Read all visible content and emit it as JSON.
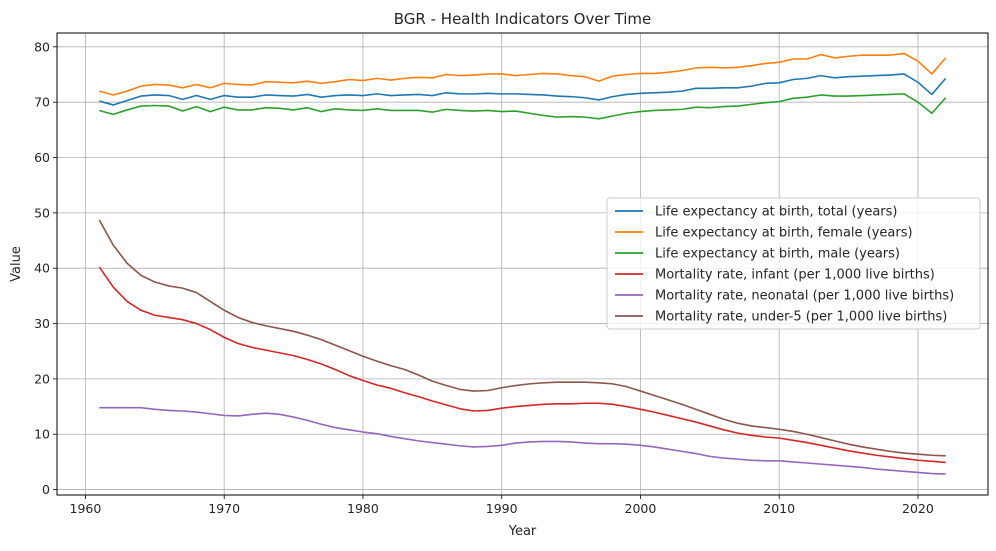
{
  "chart_data": {
    "type": "line",
    "title": "BGR - Health Indicators Over Time",
    "xlabel": "Year",
    "ylabel": "Value",
    "xlim": [
      1957.95,
      2025.05
    ],
    "ylim": [
      -0.98,
      82.5
    ],
    "xticks": [
      1960,
      1970,
      1980,
      1990,
      2000,
      2010,
      2020
    ],
    "yticks": [
      0,
      10,
      20,
      30,
      40,
      50,
      60,
      70,
      80
    ],
    "grid": true,
    "legend_position": "center-right",
    "years": [
      1961,
      1962,
      1963,
      1964,
      1965,
      1966,
      1967,
      1968,
      1969,
      1970,
      1971,
      1972,
      1973,
      1974,
      1975,
      1976,
      1977,
      1978,
      1979,
      1980,
      1981,
      1982,
      1983,
      1984,
      1985,
      1986,
      1987,
      1988,
      1989,
      1990,
      1991,
      1992,
      1993,
      1994,
      1995,
      1996,
      1997,
      1998,
      1999,
      2000,
      2001,
      2002,
      2003,
      2004,
      2005,
      2006,
      2007,
      2008,
      2009,
      2010,
      2011,
      2012,
      2013,
      2014,
      2015,
      2016,
      2017,
      2018,
      2019,
      2020,
      2021,
      2022
    ],
    "series": [
      {
        "name": "Life expectancy at birth, total (years)",
        "color": "#1f77b4",
        "values": [
          70.2,
          69.5,
          70.3,
          71.1,
          71.3,
          71.2,
          70.5,
          71.2,
          70.5,
          71.2,
          70.9,
          70.9,
          71.3,
          71.2,
          71.1,
          71.4,
          70.9,
          71.2,
          71.3,
          71.2,
          71.5,
          71.2,
          71.3,
          71.4,
          71.2,
          71.7,
          71.5,
          71.5,
          71.6,
          71.5,
          71.5,
          71.4,
          71.3,
          71.1,
          71.0,
          70.8,
          70.4,
          71.0,
          71.4,
          71.6,
          71.7,
          71.8,
          72.0,
          72.5,
          72.5,
          72.6,
          72.6,
          72.9,
          73.4,
          73.5,
          74.1,
          74.3,
          74.8,
          74.4,
          74.6,
          74.7,
          74.8,
          74.9,
          75.1,
          73.6,
          71.4,
          74.3
        ]
      },
      {
        "name": "Life expectancy at birth, female (years)",
        "color": "#ff7f0e",
        "values": [
          72.0,
          71.3,
          72.0,
          72.9,
          73.2,
          73.1,
          72.6,
          73.2,
          72.6,
          73.4,
          73.2,
          73.1,
          73.7,
          73.6,
          73.5,
          73.8,
          73.4,
          73.7,
          74.1,
          73.9,
          74.3,
          74.0,
          74.3,
          74.5,
          74.4,
          75.0,
          74.8,
          74.9,
          75.1,
          75.1,
          74.8,
          75.0,
          75.2,
          75.1,
          74.8,
          74.6,
          73.8,
          74.7,
          75.0,
          75.2,
          75.2,
          75.4,
          75.7,
          76.2,
          76.3,
          76.2,
          76.3,
          76.6,
          77.0,
          77.2,
          77.8,
          77.8,
          78.6,
          78.0,
          78.3,
          78.5,
          78.5,
          78.5,
          78.8,
          77.4,
          75.1,
          78.0
        ]
      },
      {
        "name": "Life expectancy at birth, male (years)",
        "color": "#2ca02c",
        "values": [
          68.5,
          67.8,
          68.6,
          69.3,
          69.4,
          69.3,
          68.4,
          69.2,
          68.3,
          69.1,
          68.6,
          68.6,
          69.0,
          68.9,
          68.6,
          69.0,
          68.3,
          68.8,
          68.6,
          68.5,
          68.8,
          68.5,
          68.5,
          68.5,
          68.2,
          68.7,
          68.5,
          68.4,
          68.5,
          68.3,
          68.4,
          68.0,
          67.6,
          67.3,
          67.4,
          67.3,
          67.0,
          67.5,
          68.0,
          68.3,
          68.5,
          68.6,
          68.7,
          69.1,
          69.0,
          69.2,
          69.3,
          69.6,
          69.9,
          70.1,
          70.7,
          70.9,
          71.3,
          71.1,
          71.1,
          71.2,
          71.3,
          71.4,
          71.5,
          70.0,
          68.0,
          70.8
        ]
      },
      {
        "name": "Mortality rate, infant (per 1,000 live births)",
        "color": "#d62728",
        "values": [
          40.2,
          36.6,
          34.0,
          32.4,
          31.5,
          31.1,
          30.7,
          30.0,
          28.9,
          27.5,
          26.4,
          25.7,
          25.2,
          24.7,
          24.2,
          23.5,
          22.7,
          21.7,
          20.6,
          19.7,
          18.9,
          18.3,
          17.5,
          16.8,
          16.0,
          15.3,
          14.6,
          14.2,
          14.3,
          14.7,
          15.0,
          15.2,
          15.4,
          15.5,
          15.5,
          15.6,
          15.6,
          15.4,
          15.0,
          14.5,
          14.0,
          13.4,
          12.8,
          12.2,
          11.5,
          10.8,
          10.2,
          9.8,
          9.5,
          9.3,
          8.9,
          8.5,
          8.0,
          7.5,
          7.0,
          6.6,
          6.2,
          5.9,
          5.6,
          5.3,
          5.1,
          4.9
        ]
      },
      {
        "name": "Mortality rate, neonatal (per 1,000 live births)",
        "color": "#9467bd",
        "values": [
          14.8,
          14.8,
          14.8,
          14.8,
          14.5,
          14.3,
          14.2,
          14.0,
          13.7,
          13.4,
          13.3,
          13.6,
          13.8,
          13.6,
          13.1,
          12.5,
          11.8,
          11.2,
          10.8,
          10.4,
          10.1,
          9.6,
          9.2,
          8.8,
          8.5,
          8.2,
          7.9,
          7.7,
          7.8,
          8.0,
          8.4,
          8.6,
          8.7,
          8.7,
          8.6,
          8.4,
          8.3,
          8.3,
          8.2,
          8.0,
          7.7,
          7.3,
          6.9,
          6.5,
          6.0,
          5.7,
          5.5,
          5.3,
          5.2,
          5.2,
          5.0,
          4.8,
          4.6,
          4.4,
          4.2,
          4.0,
          3.7,
          3.5,
          3.3,
          3.1,
          2.9,
          2.8
        ]
      },
      {
        "name": "Mortality rate, under-5 (per 1,000 live births)",
        "color": "#8c564b",
        "values": [
          48.7,
          44.2,
          40.9,
          38.7,
          37.5,
          36.8,
          36.4,
          35.6,
          34.0,
          32.4,
          31.1,
          30.2,
          29.6,
          29.1,
          28.6,
          27.9,
          27.1,
          26.1,
          25.1,
          24.1,
          23.2,
          22.4,
          21.7,
          20.7,
          19.6,
          18.8,
          18.1,
          17.8,
          17.9,
          18.4,
          18.8,
          19.1,
          19.3,
          19.4,
          19.4,
          19.4,
          19.3,
          19.1,
          18.6,
          17.8,
          17.0,
          16.2,
          15.4,
          14.5,
          13.6,
          12.7,
          12.0,
          11.5,
          11.2,
          10.9,
          10.5,
          10.0,
          9.4,
          8.8,
          8.2,
          7.7,
          7.3,
          6.9,
          6.6,
          6.4,
          6.2,
          6.1
        ]
      }
    ]
  }
}
